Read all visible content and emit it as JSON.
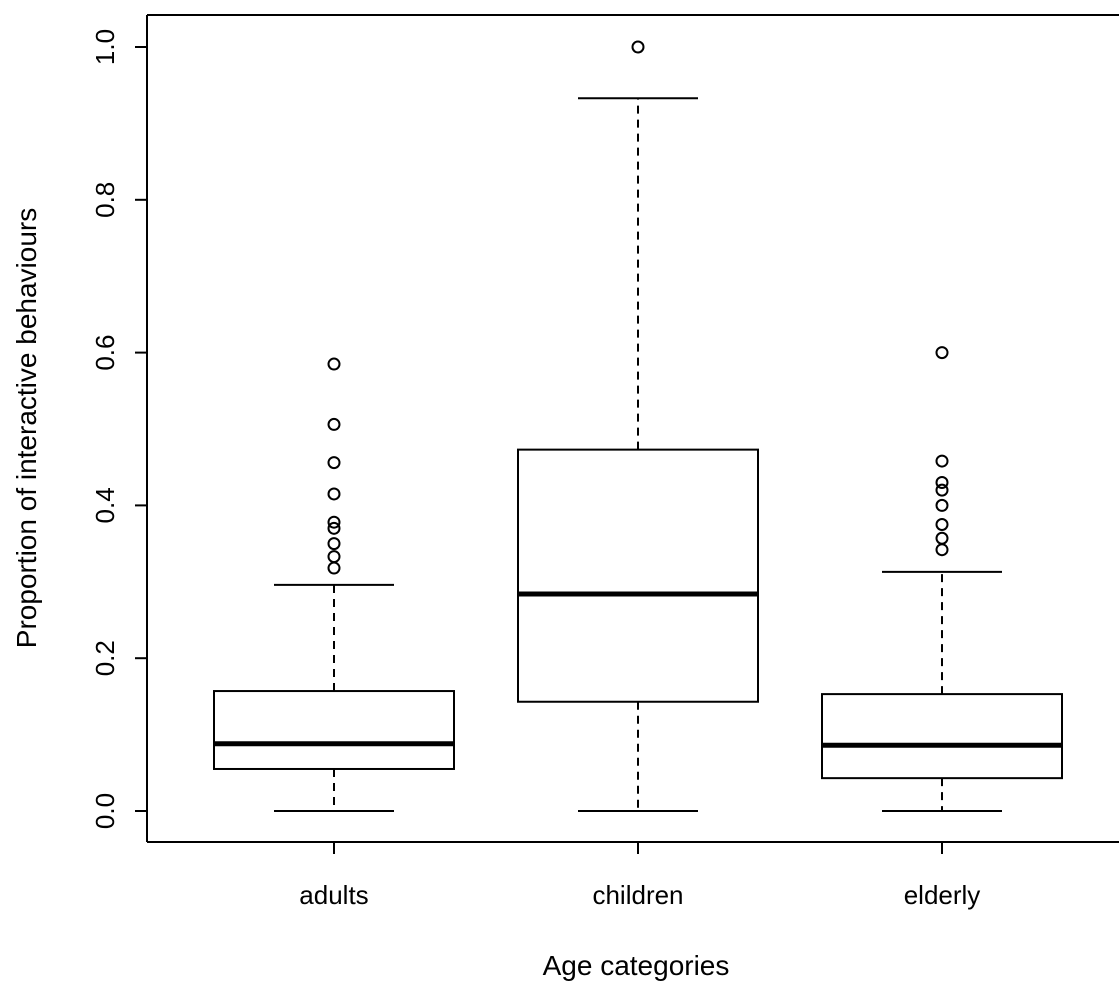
{
  "chart_data": {
    "type": "boxplot",
    "title": "",
    "xlabel": "Age categories",
    "ylabel": "Proportion of interactive behaviours",
    "categories": [
      "adults",
      "children",
      "elderly"
    ],
    "ylim": [
      -0.04,
      1.04
    ],
    "yticks": [
      0.0,
      0.2,
      0.4,
      0.6,
      0.8,
      1.0
    ],
    "ytick_labels": [
      "0.0",
      "0.2",
      "0.4",
      "0.6",
      "0.8",
      "1.0"
    ],
    "boxes": [
      {
        "category": "adults",
        "whisker_low": 0.0,
        "q1": 0.055,
        "median": 0.088,
        "q3": 0.157,
        "whisker_high": 0.296,
        "outliers": [
          0.318,
          0.333,
          0.35,
          0.37,
          0.378,
          0.415,
          0.456,
          0.506,
          0.585
        ]
      },
      {
        "category": "children",
        "whisker_low": 0.0,
        "q1": 0.143,
        "median": 0.284,
        "q3": 0.473,
        "whisker_high": 0.933,
        "outliers": [
          1.0
        ]
      },
      {
        "category": "elderly",
        "whisker_low": 0.0,
        "q1": 0.043,
        "median": 0.086,
        "q3": 0.153,
        "whisker_high": 0.313,
        "outliers": [
          0.342,
          0.357,
          0.375,
          0.4,
          0.42,
          0.43,
          0.458,
          0.6
        ]
      }
    ],
    "grid": false,
    "legend": "none"
  }
}
